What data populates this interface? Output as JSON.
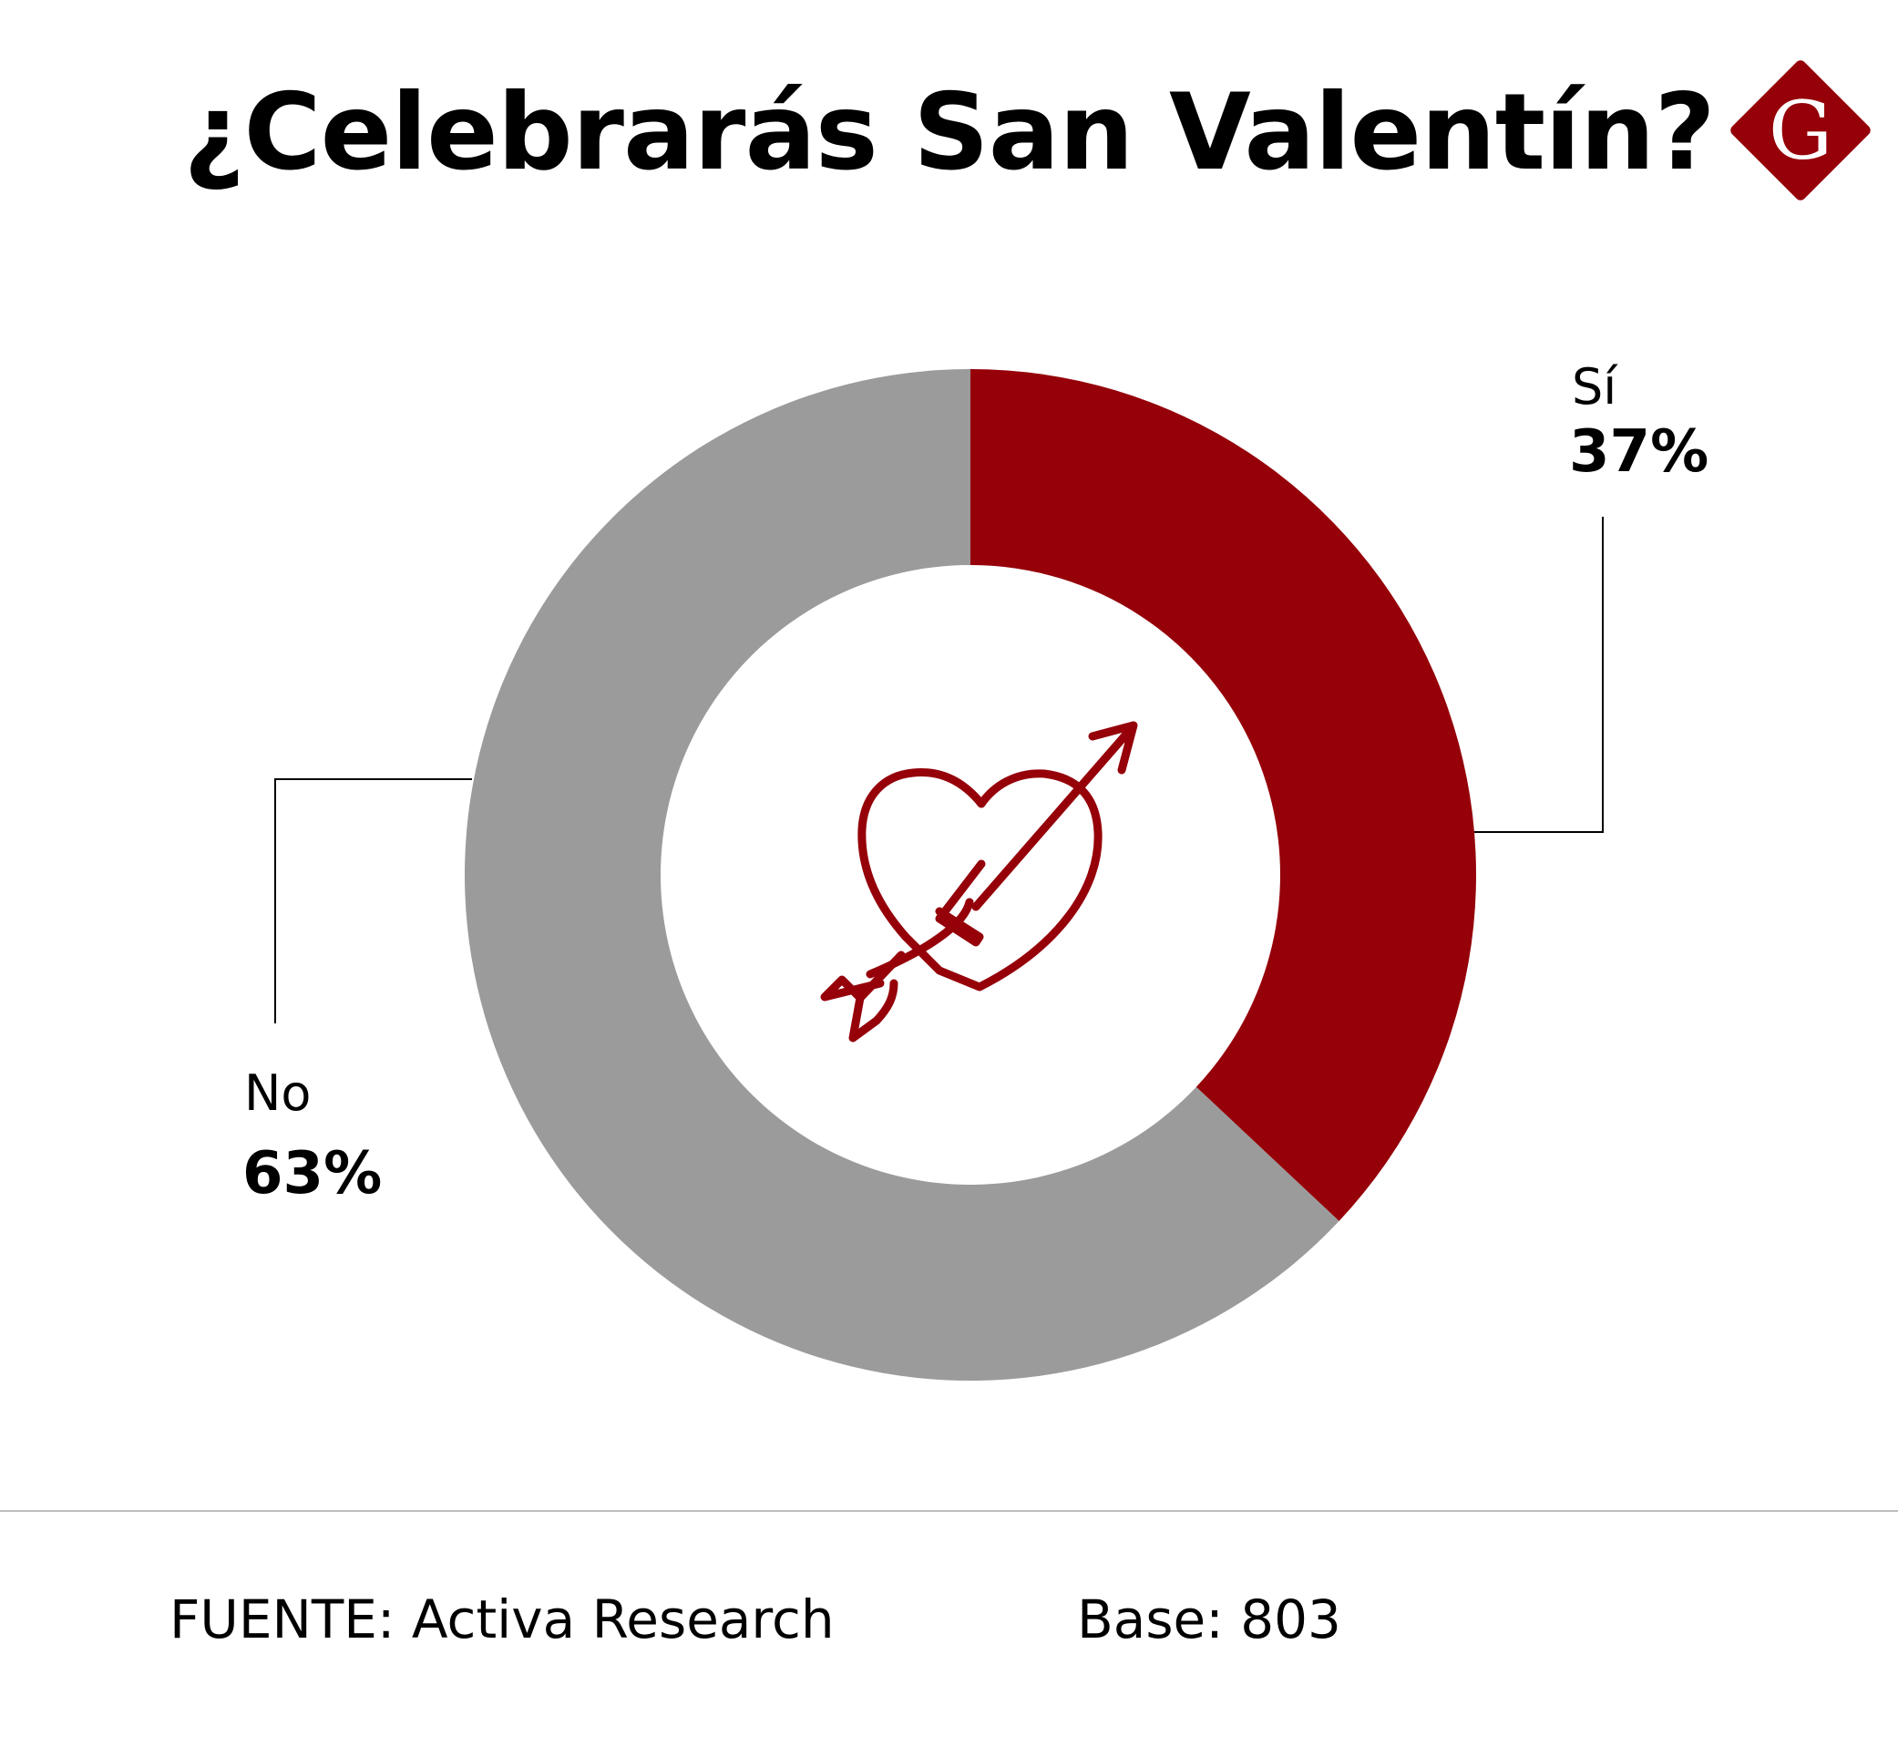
{
  "title": "¿Celebrarás San Valentín?",
  "logo": {
    "letter": "G",
    "color": "#950009"
  },
  "colors": {
    "accent": "#950009",
    "neutral": "#9b9b9b",
    "connector": "#000000"
  },
  "icon": "heart-with-arrow-icon",
  "chart_data": {
    "type": "pie",
    "variant": "donut",
    "title": "¿Celebrarás San Valentín?",
    "categories": [
      "Sí",
      "No"
    ],
    "values": [
      37,
      63
    ],
    "value_labels": [
      "37%",
      "63%"
    ],
    "colors": [
      "#950009",
      "#9b9b9b"
    ],
    "start": "top",
    "direction": "clockwise",
    "legend": "none"
  },
  "labels": {
    "si": {
      "name": "Sí",
      "value": "37%"
    },
    "no": {
      "name": "No",
      "value": "63%"
    }
  },
  "footer": {
    "source": "FUENTE:  Activa Research",
    "base": "Base: 803"
  }
}
